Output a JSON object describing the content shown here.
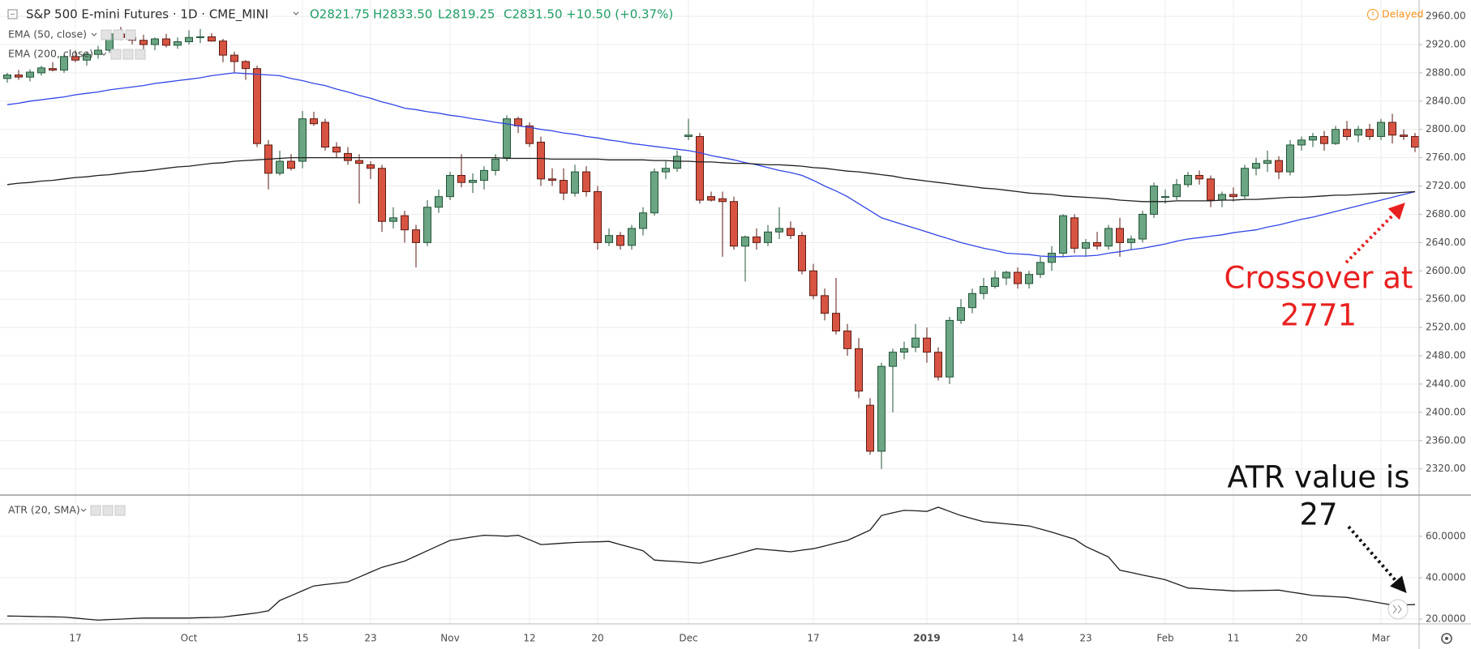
{
  "chart_data": [
    {
      "type": "candlestick",
      "title": "S&P 500 E-mini Futures · 1D · CME_MINI",
      "ohlc_legend": [
        "O2821.75",
        "H2833.50",
        "L2819.25",
        "C2831.50",
        "+10.50 (+0.37%)"
      ],
      "status": "Delayed",
      "categories": [
        null,
        null,
        null,
        null,
        null,
        null,
        "17",
        null,
        null,
        null,
        null,
        null,
        null,
        null,
        null,
        null,
        "Oct",
        null,
        null,
        null,
        null,
        null,
        null,
        null,
        null,
        null,
        "15",
        null,
        null,
        null,
        null,
        null,
        "23",
        null,
        null,
        null,
        null,
        null,
        null,
        "Nov",
        null,
        null,
        null,
        null,
        null,
        null,
        "12",
        null,
        null,
        null,
        null,
        null,
        "20",
        null,
        null,
        null,
        null,
        null,
        null,
        null,
        "Dec",
        null,
        null,
        null,
        null,
        null,
        null,
        null,
        null,
        null,
        null,
        "17",
        null,
        null,
        null,
        null,
        null,
        null,
        null,
        null,
        null,
        "2019",
        null,
        null,
        null,
        null,
        null,
        null,
        null,
        "14",
        null,
        null,
        null,
        null,
        null,
        "23",
        null,
        null,
        null,
        null,
        null,
        null,
        "Feb",
        null,
        null,
        null,
        null,
        null,
        "11",
        null,
        null,
        null,
        null,
        null,
        "20",
        null,
        null,
        null,
        null,
        null,
        null,
        "Mar",
        null,
        null,
        null
      ],
      "open": [
        2872,
        2877,
        2874,
        2880,
        2886,
        2884,
        2903,
        2898,
        2906,
        2912,
        2935,
        2930,
        2926,
        2920,
        2928,
        2919,
        2924,
        2930,
        2931,
        2925,
        2905,
        2896,
        2886,
        2778,
        2738,
        2755,
        2755,
        2815,
        2810,
        2775,
        2766,
        2756,
        2750,
        2745,
        2670,
        2678,
        2658,
        2640,
        2690,
        2705,
        2735,
        2725,
        2728,
        2742,
        2760,
        2815,
        2805,
        2782,
        2730,
        2728,
        2710,
        2740,
        2712,
        2640,
        2650,
        2636,
        2660,
        2682,
        2740,
        2745,
        2790,
        2790,
        2705,
        2702,
        2698,
        2635,
        2648,
        2640,
        2655,
        2660,
        2650,
        2600,
        2565,
        2540,
        2515,
        2490,
        2410,
        2345,
        2465,
        2485,
        2492,
        2505,
        2485,
        2450,
        2530,
        2548,
        2568,
        2578,
        2590,
        2598,
        2582,
        2595,
        2612,
        2625,
        2675,
        2632,
        2640,
        2635,
        2660,
        2640,
        2645,
        2680,
        2705,
        2705,
        2722,
        2735,
        2730,
        2700,
        2708,
        2706,
        2745,
        2752,
        2756,
        2740,
        2778,
        2785,
        2790,
        2780,
        2800,
        2792,
        2800,
        2790,
        2810,
        2792,
        2790
      ],
      "high": [
        2880,
        2884,
        2885,
        2890,
        2895,
        2906,
        2912,
        2910,
        2918,
        2940,
        2945,
        2937,
        2934,
        2930,
        2935,
        2930,
        2940,
        2942,
        2936,
        2928,
        2910,
        2898,
        2890,
        2785,
        2770,
        2765,
        2826,
        2825,
        2815,
        2782,
        2775,
        2765,
        2755,
        2750,
        2690,
        2685,
        2665,
        2700,
        2715,
        2740,
        2765,
        2738,
        2748,
        2765,
        2820,
        2818,
        2810,
        2790,
        2745,
        2745,
        2750,
        2748,
        2720,
        2660,
        2655,
        2665,
        2690,
        2745,
        2755,
        2770,
        2815,
        2795,
        2712,
        2712,
        2705,
        2650,
        2660,
        2665,
        2690,
        2670,
        2655,
        2610,
        2575,
        2590,
        2525,
        2505,
        2420,
        2470,
        2490,
        2500,
        2525,
        2520,
        2492,
        2535,
        2560,
        2575,
        2590,
        2600,
        2600,
        2605,
        2600,
        2620,
        2635,
        2680,
        2680,
        2645,
        2655,
        2665,
        2675,
        2650,
        2685,
        2725,
        2715,
        2730,
        2740,
        2742,
        2735,
        2712,
        2718,
        2750,
        2760,
        2770,
        2762,
        2785,
        2790,
        2795,
        2798,
        2805,
        2812,
        2805,
        2808,
        2815,
        2822,
        2800,
        2795
      ],
      "low": [
        2866,
        2870,
        2868,
        2876,
        2882,
        2880,
        2895,
        2890,
        2900,
        2908,
        2926,
        2920,
        2912,
        2912,
        2916,
        2914,
        2920,
        2922,
        2924,
        2895,
        2880,
        2870,
        2775,
        2715,
        2735,
        2742,
        2745,
        2805,
        2770,
        2760,
        2750,
        2695,
        2730,
        2655,
        2660,
        2640,
        2605,
        2635,
        2682,
        2700,
        2718,
        2710,
        2715,
        2735,
        2755,
        2795,
        2775,
        2720,
        2720,
        2700,
        2705,
        2705,
        2630,
        2635,
        2630,
        2630,
        2650,
        2678,
        2730,
        2740,
        2785,
        2695,
        2698,
        2620,
        2630,
        2585,
        2630,
        2635,
        2645,
        2645,
        2595,
        2560,
        2530,
        2510,
        2480,
        2420,
        2340,
        2320,
        2400,
        2475,
        2485,
        2470,
        2445,
        2440,
        2525,
        2540,
        2560,
        2575,
        2580,
        2575,
        2575,
        2590,
        2600,
        2620,
        2625,
        2620,
        2630,
        2630,
        2620,
        2630,
        2640,
        2675,
        2695,
        2700,
        2718,
        2722,
        2690,
        2690,
        2698,
        2702,
        2735,
        2740,
        2730,
        2735,
        2770,
        2775,
        2770,
        2778,
        2785,
        2782,
        2785,
        2785,
        2780,
        2785,
        2768
      ],
      "close": [
        2877,
        2874,
        2881,
        2887,
        2884,
        2903,
        2898,
        2906,
        2912,
        2935,
        2930,
        2926,
        2920,
        2928,
        2919,
        2924,
        2930,
        2931,
        2925,
        2905,
        2896,
        2886,
        2780,
        2738,
        2755,
        2745,
        2815,
        2808,
        2775,
        2768,
        2756,
        2752,
        2745,
        2670,
        2675,
        2658,
        2640,
        2690,
        2705,
        2735,
        2725,
        2728,
        2742,
        2758,
        2815,
        2805,
        2780,
        2730,
        2728,
        2710,
        2740,
        2712,
        2640,
        2650,
        2636,
        2660,
        2682,
        2740,
        2745,
        2762,
        2792,
        2700,
        2700,
        2698,
        2635,
        2648,
        2640,
        2655,
        2660,
        2650,
        2600,
        2565,
        2540,
        2515,
        2490,
        2430,
        2345,
        2465,
        2485,
        2490,
        2505,
        2485,
        2450,
        2530,
        2548,
        2568,
        2578,
        2590,
        2598,
        2582,
        2595,
        2612,
        2625,
        2678,
        2632,
        2640,
        2635,
        2660,
        2640,
        2645,
        2680,
        2720,
        2705,
        2722,
        2735,
        2730,
        2700,
        2708,
        2705,
        2745,
        2752,
        2756,
        2740,
        2778,
        2785,
        2790,
        2780,
        2800,
        2790,
        2800,
        2790,
        2810,
        2792,
        2790,
        2775
      ],
      "up_color": "#6ba583",
      "up_border": "#225437",
      "down_color": "#d75442",
      "down_border": "#5b1a13",
      "series": [
        {
          "name": "EMA (50, close)",
          "color": "#3245e6",
          "values": [
            2835,
            2837,
            2840,
            2842,
            2844,
            2846,
            2849,
            2851,
            2853,
            2856,
            2858,
            2860,
            2862,
            2865,
            2867,
            2869,
            2871,
            2873,
            2876,
            2878,
            2880,
            2879,
            2878,
            2877,
            2876,
            2872,
            2869,
            2865,
            2862,
            2857,
            2853,
            2848,
            2844,
            2839,
            2835,
            2830,
            2828,
            2825,
            2823,
            2820,
            2818,
            2815,
            2813,
            2810,
            2808,
            2805,
            2803,
            2800,
            2798,
            2795,
            2793,
            2790,
            2788,
            2785,
            2783,
            2780,
            2778,
            2776,
            2774,
            2772,
            2770,
            2767,
            2763,
            2760,
            2757,
            2753,
            2750,
            2746,
            2742,
            2739,
            2735,
            2728,
            2720,
            2713,
            2705,
            2695,
            2685,
            2675,
            2670,
            2665,
            2660,
            2655,
            2650,
            2645,
            2640,
            2636,
            2632,
            2629,
            2625,
            2624,
            2623,
            2621,
            2620,
            2620,
            2621,
            2621,
            2622,
            2625,
            2627,
            2630,
            2632,
            2635,
            2638,
            2642,
            2645,
            2647,
            2649,
            2651,
            2654,
            2656,
            2658,
            2662,
            2665,
            2669,
            2673,
            2676,
            2680,
            2684,
            2688,
            2692,
            2696,
            2700,
            2704,
            2708,
            2712
          ]
        },
        {
          "name": "EMA (200, close)",
          "color": "#1f1f1f",
          "values": [
            2722,
            2724,
            2725,
            2727,
            2728,
            2730,
            2732,
            2733,
            2735,
            2736,
            2738,
            2740,
            2741,
            2743,
            2745,
            2747,
            2748,
            2750,
            2752,
            2753,
            2755,
            2756,
            2757,
            2758,
            2759,
            2760,
            2760,
            2760,
            2760,
            2760,
            2760,
            2760,
            2760,
            2760,
            2760,
            2760,
            2760,
            2760,
            2760,
            2760,
            2760,
            2760,
            2760,
            2760,
            2759,
            2759,
            2759,
            2759,
            2758,
            2758,
            2758,
            2758,
            2758,
            2757,
            2757,
            2757,
            2757,
            2756,
            2756,
            2755,
            2755,
            2754,
            2754,
            2753,
            2752,
            2752,
            2751,
            2750,
            2750,
            2749,
            2748,
            2746,
            2745,
            2743,
            2741,
            2740,
            2738,
            2736,
            2734,
            2731,
            2729,
            2727,
            2725,
            2723,
            2721,
            2719,
            2717,
            2716,
            2714,
            2712,
            2710,
            2709,
            2708,
            2706,
            2705,
            2704,
            2703,
            2702,
            2700,
            2699,
            2698,
            2698,
            2698,
            2699,
            2699,
            2699,
            2699,
            2700,
            2700,
            2701,
            2701,
            2702,
            2703,
            2704,
            2704,
            2705,
            2706,
            2707,
            2707,
            2708,
            2709,
            2710,
            2710,
            2711,
            2712
          ]
        }
      ],
      "ylim": [
        2283,
        2983
      ],
      "yticks": [
        {
          "value": 2320,
          "label": "2320.00"
        },
        {
          "value": 2360,
          "label": "2360.00"
        },
        {
          "value": 2400,
          "label": "2400.00"
        },
        {
          "value": 2440,
          "label": "2440.00"
        },
        {
          "value": 2480,
          "label": "2480.00"
        },
        {
          "value": 2520,
          "label": "2520.00"
        },
        {
          "value": 2560,
          "label": "2560.00"
        },
        {
          "value": 2600,
          "label": "2600.00"
        },
        {
          "value": 2640,
          "label": "2640.00"
        },
        {
          "value": 2680,
          "label": "2680.00"
        },
        {
          "value": 2720,
          "label": "2720.00"
        },
        {
          "value": 2760,
          "label": "2760.00"
        },
        {
          "value": 2800,
          "label": "2800.00"
        },
        {
          "value": 2840,
          "label": "2840.00"
        },
        {
          "value": 2880,
          "label": "2880.00"
        },
        {
          "value": 2920,
          "label": "2920.00"
        },
        {
          "value": 2960,
          "label": "2960.00"
        }
      ],
      "grid": true,
      "annotation": {
        "lines": [
          "Crossover at",
          "2771"
        ],
        "color": "#e8201f"
      }
    },
    {
      "type": "line",
      "series": [
        {
          "name": "ATR (20, SMA)",
          "color": "#1f1f1f",
          "values": [
            21.5,
            21.4,
            21.3,
            21.2,
            21.1,
            21,
            20.5,
            20,
            19.5,
            19.8,
            20,
            20.3,
            20.5,
            20.5,
            20.5,
            20.5,
            20.5,
            20.7,
            20.8,
            21,
            21.7,
            22.3,
            23,
            24,
            29,
            31.3,
            33.7,
            36,
            36.7,
            37.3,
            38,
            40.3,
            42.7,
            45,
            46.5,
            48,
            50.5,
            53,
            55.5,
            58,
            58.8,
            59.7,
            60.5,
            60.3,
            60,
            60.5,
            58.3,
            56,
            56.3,
            56.7,
            57,
            57.2,
            57.3,
            57.5,
            56,
            54.5,
            53,
            48.5,
            48.1,
            47.8,
            47.4,
            47,
            48.3,
            49.7,
            51,
            52.5,
            54,
            53.5,
            53,
            52.5,
            53.3,
            54,
            55.3,
            56.7,
            58,
            60.5,
            63,
            70,
            71.3,
            72.5,
            72.3,
            72,
            74,
            72,
            70,
            68.5,
            67,
            66.5,
            66,
            65.5,
            65,
            63.5,
            62,
            60.3,
            58.6,
            55,
            52.5,
            50,
            43.6,
            42.5,
            41.3,
            40.2,
            39,
            37,
            35,
            34.7,
            34.3,
            34,
            33.6,
            33.7,
            33.8,
            33.9,
            34,
            33.1,
            32.3,
            31.4,
            31.1,
            30.8,
            30.5,
            29.6,
            28.7,
            27.7,
            26.8,
            26.9,
            27
          ]
        }
      ],
      "ylim": [
        17.7,
        79.1
      ],
      "yticks": [
        {
          "value": 20,
          "label": "20.0000"
        },
        {
          "value": 40,
          "label": "40.0000"
        },
        {
          "value": 60,
          "label": "60.0000"
        }
      ],
      "grid": true,
      "annotation": {
        "lines": [
          "ATR value is",
          "27"
        ],
        "color": "#111111"
      }
    }
  ]
}
